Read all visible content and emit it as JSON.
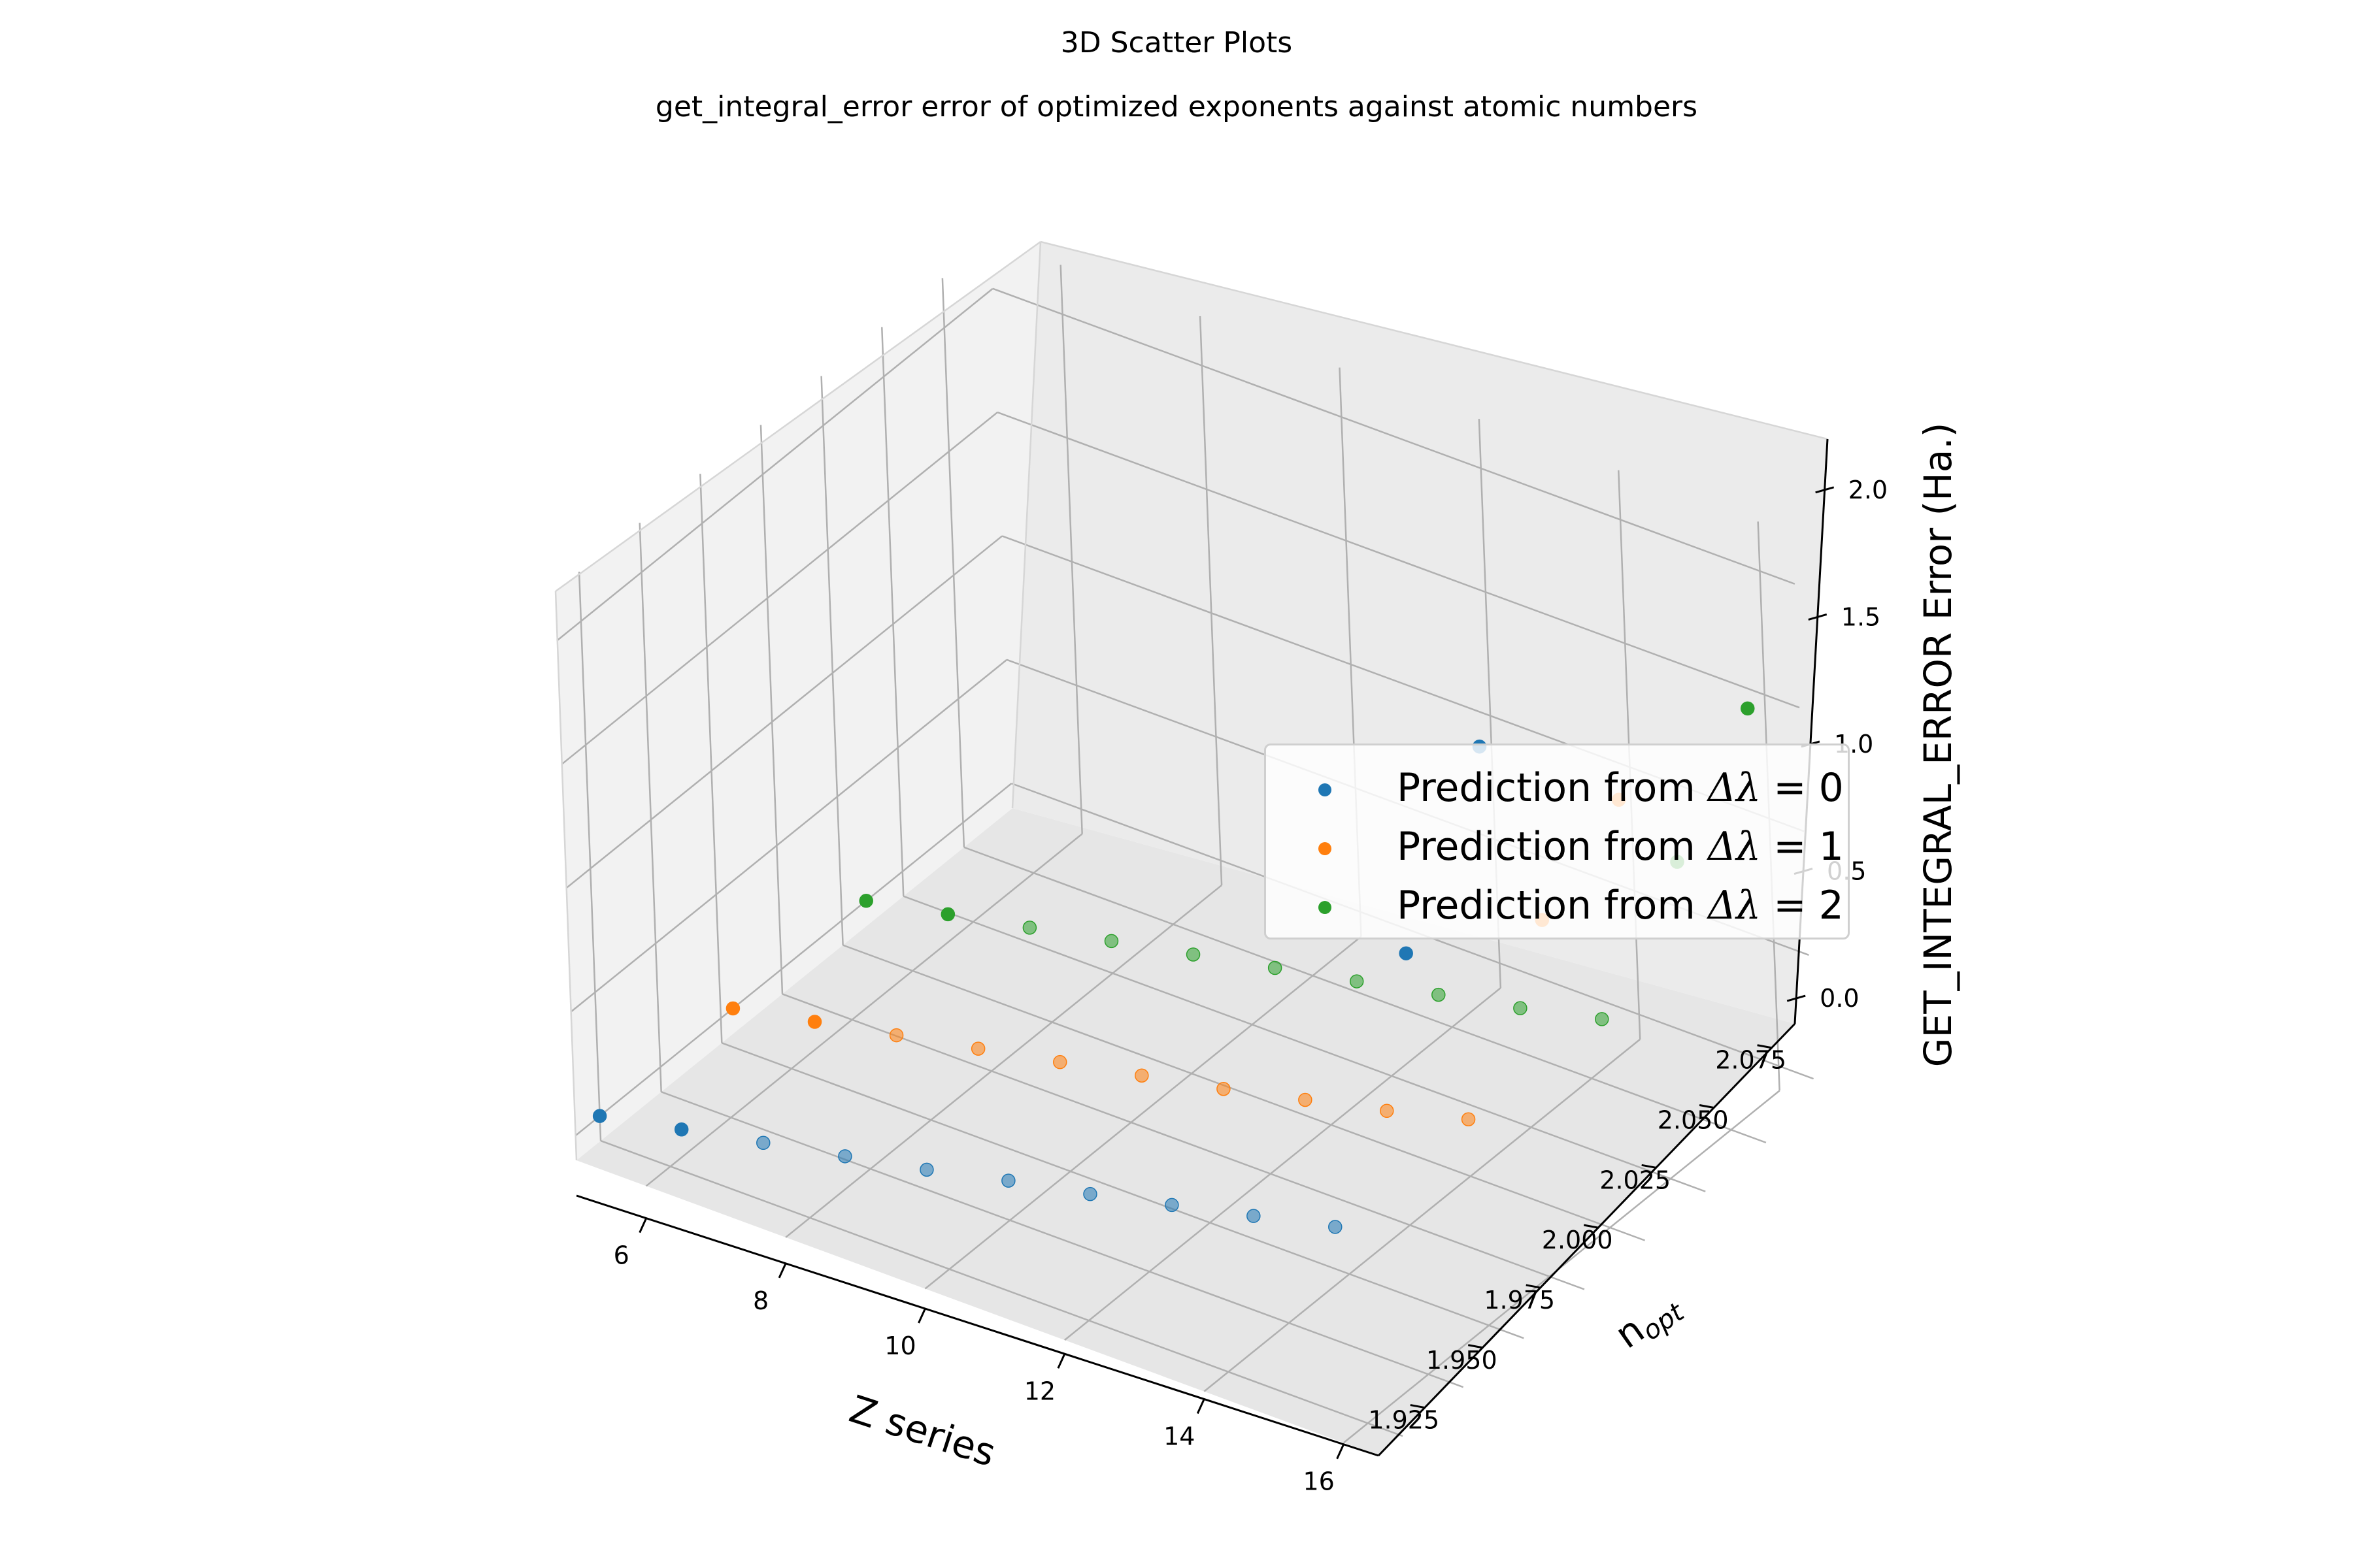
{
  "figure": {
    "suptitle": "3D Scatter Plots",
    "title": "get_integral_error error of optimized exponents against atomic numbers"
  },
  "chart_data": {
    "type": "scatter",
    "projection": "3d",
    "title": "get_integral_error error of optimized exponents against atomic numbers",
    "xlabel": "Z series",
    "ylabel": "n_opt",
    "ylabel_display": {
      "base": "n",
      "sub": "opt"
    },
    "zlabel": "GET_INTEGRAL_ERROR Error (Ha.)",
    "xlim": [
      5,
      16.5
    ],
    "ylim": [
      1.905,
      2.085
    ],
    "zlim": [
      -0.1,
      2.2
    ],
    "xticks": [
      "6",
      "8",
      "10",
      "12",
      "14",
      "16"
    ],
    "yticks": [
      "1.925",
      "1.950",
      "1.975",
      "2.000",
      "2.025",
      "2.050",
      "2.075"
    ],
    "zticks": [
      "0.0",
      "0.5",
      "1.0",
      "1.5",
      "2.0"
    ],
    "grid": true,
    "legend_position": "center-right",
    "series": [
      {
        "legend_prefix": "Prediction from ",
        "legend_value": "0",
        "color": "#1f77b4",
        "points": [
          {
            "x": 5,
            "y": 2.075,
            "z": 0.0
          },
          {
            "x": 6,
            "y": 2.07,
            "z": 0.01
          },
          {
            "x": 7,
            "y": 2.065,
            "z": 0.02
          },
          {
            "x": 8,
            "y": 2.06,
            "z": 0.03
          },
          {
            "x": 9,
            "y": 2.055,
            "z": 0.04
          },
          {
            "x": 10,
            "y": 2.05,
            "z": 0.06
          },
          {
            "x": 11,
            "y": 2.045,
            "z": 0.07
          },
          {
            "x": 12,
            "y": 2.04,
            "z": 0.09
          },
          {
            "x": 13,
            "y": 2.035,
            "z": 0.11
          },
          {
            "x": 14,
            "y": 2.03,
            "z": 0.13
          },
          {
            "x": 15,
            "y": 2.025,
            "z": 1.3
          },
          {
            "x": 16,
            "y": 2.02,
            "z": 2.2
          }
        ]
      },
      {
        "legend_prefix": "Prediction from ",
        "legend_value": "1",
        "color": "#ff7f0e",
        "points": [
          {
            "x": 5,
            "y": 2.02,
            "z": 0.0
          },
          {
            "x": 6,
            "y": 2.015,
            "z": 0.01
          },
          {
            "x": 7,
            "y": 2.01,
            "z": 0.02
          },
          {
            "x": 8,
            "y": 2.005,
            "z": 0.03
          },
          {
            "x": 9,
            "y": 2.0,
            "z": 0.04
          },
          {
            "x": 10,
            "y": 1.995,
            "z": 0.05
          },
          {
            "x": 11,
            "y": 1.99,
            "z": 0.06
          },
          {
            "x": 12,
            "y": 1.985,
            "z": 0.08
          },
          {
            "x": 13,
            "y": 1.98,
            "z": 0.1
          },
          {
            "x": 14,
            "y": 1.975,
            "z": 0.13
          },
          {
            "x": 15,
            "y": 1.97,
            "z": 1.0
          },
          {
            "x": 16,
            "y": 1.965,
            "z": 1.55
          }
        ]
      },
      {
        "legend_prefix": "Prediction from ",
        "legend_value": "2",
        "color": "#2ca02c",
        "points": [
          {
            "x": 5,
            "y": 1.965,
            "z": 0.0
          },
          {
            "x": 6,
            "y": 1.96,
            "z": 0.01
          },
          {
            "x": 7,
            "y": 1.955,
            "z": 0.02
          },
          {
            "x": 8,
            "y": 1.95,
            "z": 0.03
          },
          {
            "x": 9,
            "y": 1.945,
            "z": 0.04
          },
          {
            "x": 10,
            "y": 1.94,
            "z": 0.05
          },
          {
            "x": 11,
            "y": 1.935,
            "z": 0.06
          },
          {
            "x": 12,
            "y": 1.93,
            "z": 0.07
          },
          {
            "x": 13,
            "y": 1.925,
            "z": 0.08
          },
          {
            "x": 14,
            "y": 1.92,
            "z": 0.1
          },
          {
            "x": 15,
            "y": 1.915,
            "z": 0.8
          },
          {
            "x": 16,
            "y": 1.912,
            "z": 1.5
          }
        ]
      }
    ]
  }
}
